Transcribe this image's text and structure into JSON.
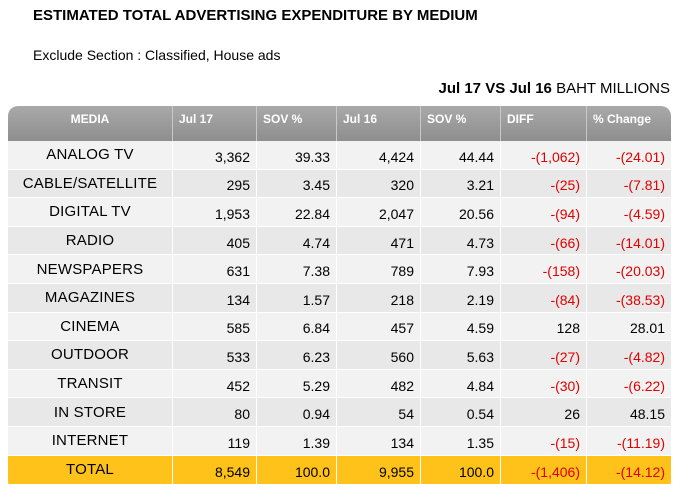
{
  "title": "ESTIMATED TOTAL ADVERTISING EXPENDITURE BY MEDIUM",
  "subtitle": "Exclude Section : Classified, House ads",
  "period_bold": "Jul 17 VS Jul 16",
  "period_unit": "BAHT MILLIONS",
  "headers": [
    "MEDIA",
    "Jul 17",
    "SOV %",
    "Jul 16",
    "SOV %",
    "DIFF",
    "% Change"
  ],
  "rows": [
    [
      "ANALOG   TV",
      "3,362",
      "39.33",
      "4,424",
      "44.44",
      "-(1,062)",
      "-(24.01)"
    ],
    [
      "CABLE/SATELLITE",
      "295",
      "3.45",
      "320",
      "3.21",
      "-(25)",
      "-(7.81)"
    ],
    [
      "DIGITAL TV",
      "1,953",
      "22.84",
      "2,047",
      "20.56",
      "-(94)",
      "-(4.59)"
    ],
    [
      "RADIO",
      "405",
      "4.74",
      "471",
      "4.73",
      "-(66)",
      "-(14.01)"
    ],
    [
      "NEWSPAPERS",
      "631",
      "7.38",
      "789",
      "7.93",
      "-(158)",
      "-(20.03)"
    ],
    [
      "MAGAZINES",
      "134",
      "1.57",
      "218",
      "2.19",
      "-(84)",
      "-(38.53)"
    ],
    [
      "CINEMA",
      "585",
      "6.84",
      "457",
      "4.59",
      "128",
      "28.01"
    ],
    [
      "OUTDOOR",
      "533",
      "6.23",
      "560",
      "5.63",
      "-(27)",
      "-(4.82)"
    ],
    [
      "TRANSIT",
      "452",
      "5.29",
      "482",
      "4.84",
      "-(30)",
      "-(6.22)"
    ],
    [
      "IN STORE",
      "80",
      "0.94",
      "54",
      "0.54",
      "26",
      "48.15"
    ],
    [
      "INTERNET",
      "119",
      "1.39",
      "134",
      "1.35",
      "-(15)",
      "-(11.19)"
    ]
  ],
  "total": [
    "TOTAL",
    "8,549",
    "100.0",
    "9,955",
    "100.0",
    "-(1,406)",
    "-(14.12)"
  ],
  "colors": {
    "header": "#999999",
    "negative": "#e00000",
    "total_row": "#ffc21a"
  }
}
